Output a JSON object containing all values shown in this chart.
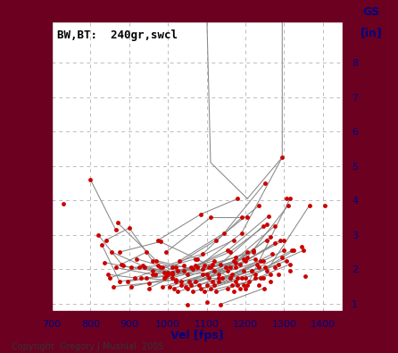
{
  "title": "BW,BT:  240gr,swcl",
  "xlabel": "Vel [fps]",
  "ylabel_line1": "GS",
  "ylabel_line2": "[in]",
  "copyright": "Copyright  Gregory J Mushial  2005",
  "xlim": [
    700,
    1450
  ],
  "ylim": [
    0.8,
    9.2
  ],
  "xticks": [
    700,
    800,
    900,
    1000,
    1100,
    1200,
    1300,
    1400
  ],
  "yticks": [
    1,
    2,
    3,
    4,
    5,
    6,
    7,
    8
  ],
  "bg_color": "#ffffff",
  "border_color": "#6b0020",
  "dot_color": "#cc0000",
  "line_color": "#888888",
  "grid_color": "#bbbbbb",
  "series": [
    [
      [
        730,
        3.9
      ]
    ],
    [
      [
        800,
        4.6
      ],
      [
        865,
        3.15
      ]
    ],
    [
      [
        820,
        3.0
      ],
      [
        880,
        2.15
      ],
      [
        945,
        2.5
      ]
    ],
    [
      [
        830,
        2.7
      ],
      [
        875,
        1.65
      ],
      [
        945,
        1.75
      ],
      [
        1010,
        1.85
      ]
    ],
    [
      [
        835,
        2.2
      ],
      [
        905,
        2.05
      ],
      [
        975,
        2.1
      ]
    ],
    [
      [
        840,
        2.85
      ],
      [
        900,
        3.2
      ],
      [
        960,
        2.25
      ],
      [
        1020,
        2.05
      ]
    ],
    [
      [
        845,
        1.85
      ],
      [
        915,
        1.75
      ],
      [
        985,
        2.05
      ]
    ],
    [
      [
        850,
        1.75
      ],
      [
        925,
        2.05
      ],
      [
        1000,
        1.9
      ],
      [
        1070,
        2.1
      ]
    ],
    [
      [
        855,
        2.5
      ],
      [
        935,
        2.1
      ],
      [
        1010,
        1.9
      ]
    ],
    [
      [
        860,
        1.5
      ],
      [
        950,
        1.6
      ],
      [
        1020,
        1.7
      ]
    ],
    [
      [
        865,
        2.05
      ],
      [
        960,
        1.85
      ],
      [
        1040,
        2.1
      ]
    ],
    [
      [
        870,
        3.35
      ],
      [
        970,
        2.25
      ],
      [
        1065,
        2.0
      ]
    ],
    [
      [
        875,
        2.5
      ],
      [
        980,
        2.8
      ],
      [
        1075,
        2.3
      ],
      [
        1160,
        1.75
      ]
    ],
    [
      [
        885,
        2.1
      ],
      [
        990,
        1.9
      ],
      [
        1090,
        2.0
      ],
      [
        1175,
        2.2
      ]
    ],
    [
      [
        895,
        1.65
      ],
      [
        995,
        1.8
      ],
      [
        1095,
        2.1
      ]
    ],
    [
      [
        905,
        1.5
      ],
      [
        1010,
        1.75
      ],
      [
        1110,
        2.05
      ],
      [
        1195,
        2.3
      ]
    ],
    [
      [
        920,
        2.3
      ],
      [
        1025,
        1.95
      ],
      [
        1120,
        2.25
      ]
    ],
    [
      [
        930,
        1.75
      ],
      [
        1035,
        1.65
      ],
      [
        1130,
        1.75
      ]
    ],
    [
      [
        940,
        2.05
      ],
      [
        1050,
        1.85
      ],
      [
        1155,
        1.95
      ]
    ],
    [
      [
        950,
        1.45
      ],
      [
        1060,
        2.05
      ],
      [
        1160,
        2.5
      ],
      [
        1255,
        3.3
      ]
    ],
    [
      [
        960,
        1.95
      ],
      [
        1070,
        2.3
      ],
      [
        1170,
        2.85
      ]
    ],
    [
      [
        968,
        1.85
      ],
      [
        1075,
        2.05
      ],
      [
        1175,
        2.35
      ]
    ],
    [
      [
        975,
        2.85
      ],
      [
        1085,
        3.6
      ],
      [
        1180,
        4.05
      ]
    ],
    [
      [
        980,
        2.05
      ],
      [
        1090,
        2.45
      ],
      [
        1190,
        3.5
      ]
    ],
    [
      [
        985,
        1.5
      ],
      [
        1100,
        1.85
      ],
      [
        1200,
        2.25
      ],
      [
        1300,
        2.85
      ]
    ],
    [
      [
        990,
        1.75
      ],
      [
        1105,
        2.05
      ],
      [
        1205,
        2.5
      ]
    ],
    [
      [
        995,
        2.5
      ],
      [
        1110,
        3.5
      ],
      [
        1205,
        3.5
      ]
    ],
    [
      [
        1000,
        1.85
      ],
      [
        1115,
        2.15
      ],
      [
        1220,
        2.5
      ]
    ],
    [
      [
        1005,
        1.5
      ],
      [
        1120,
        1.95
      ],
      [
        1225,
        2.3
      ]
    ],
    [
      [
        1010,
        2.05
      ],
      [
        1125,
        2.85
      ],
      [
        1235,
        3.85
      ]
    ],
    [
      [
        1015,
        1.45
      ],
      [
        1130,
        1.85
      ],
      [
        1240,
        2.25
      ]
    ],
    [
      [
        1020,
        1.65
      ],
      [
        1135,
        2.15
      ],
      [
        1245,
        3.25
      ]
    ],
    [
      [
        1025,
        1.35
      ],
      [
        1140,
        1.75
      ],
      [
        1250,
        2.05
      ],
      [
        1350,
        2.55
      ]
    ],
    [
      [
        1030,
        2.25
      ],
      [
        1145,
        3.05
      ],
      [
        1250,
        4.5
      ]
    ],
    [
      [
        1035,
        1.55
      ],
      [
        1150,
        2.05
      ],
      [
        1255,
        2.85
      ]
    ],
    [
      [
        1040,
        1.95
      ],
      [
        1155,
        2.55
      ],
      [
        1260,
        3.55
      ]
    ],
    [
      [
        1045,
        1.5
      ],
      [
        1160,
        2.05
      ],
      [
        1265,
        2.95
      ]
    ],
    [
      [
        1050,
        1.45
      ],
      [
        1165,
        1.85
      ],
      [
        1270,
        2.45
      ]
    ],
    [
      [
        1055,
        1.65
      ],
      [
        1170,
        2.25
      ],
      [
        1275,
        3.25
      ]
    ],
    [
      [
        1060,
        1.55
      ],
      [
        1175,
        2.05
      ],
      [
        1275,
        2.75
      ]
    ],
    [
      [
        1065,
        1.35
      ],
      [
        1180,
        1.75
      ],
      [
        1285,
        2.15
      ]
    ],
    [
      [
        1070,
        1.65
      ],
      [
        1185,
        2.15
      ],
      [
        1290,
        2.85
      ]
    ],
    [
      [
        1075,
        2.05
      ],
      [
        1190,
        3.05
      ],
      [
        1295,
        5.25
      ]
    ],
    [
      [
        1080,
        1.55
      ],
      [
        1195,
        1.95
      ],
      [
        1300,
        2.55
      ]
    ],
    [
      [
        1085,
        1.45
      ],
      [
        1200,
        1.75
      ],
      [
        1305,
        2.25
      ]
    ],
    [
      [
        1090,
        1.85
      ],
      [
        1205,
        2.35
      ],
      [
        1310,
        3.85
      ]
    ],
    [
      [
        1095,
        1.35
      ],
      [
        1210,
        1.65
      ],
      [
        1315,
        2.15
      ]
    ],
    [
      [
        1100,
        1.55
      ],
      [
        1215,
        1.95
      ],
      [
        1320,
        2.55
      ]
    ],
    [
      [
        1105,
        1.75
      ],
      [
        1220,
        2.55
      ]
    ],
    [
      [
        1110,
        1.45
      ],
      [
        1225,
        1.85
      ],
      [
        1325,
        2.55
      ]
    ],
    [
      [
        1115,
        1.65
      ],
      [
        1230,
        2.15
      ]
    ],
    [
      [
        1120,
        1.55
      ],
      [
        1235,
        2.05
      ]
    ],
    [
      [
        1125,
        1.35
      ],
      [
        1240,
        1.75
      ]
    ],
    [
      [
        1130,
        1.65
      ],
      [
        1245,
        2.25
      ]
    ],
    [
      [
        1135,
        0.98
      ],
      [
        1248,
        1.45
      ]
    ],
    [
      [
        1050,
        0.97
      ]
    ],
    [
      [
        1100,
        1.05
      ]
    ],
    [
      [
        1155,
        1.45
      ],
      [
        1265,
        1.85
      ]
    ],
    [
      [
        1160,
        1.75
      ]
    ],
    [
      [
        1165,
        1.55
      ]
    ],
    [
      [
        1170,
        1.35
      ]
    ],
    [
      [
        1175,
        1.65
      ]
    ],
    [
      [
        1180,
        1.55
      ]
    ],
    [
      [
        1185,
        1.45
      ]
    ],
    [
      [
        1190,
        1.75
      ]
    ],
    [
      [
        1195,
        1.55
      ]
    ],
    [
      [
        1200,
        1.45
      ]
    ],
    [
      [
        1205,
        1.55
      ],
      [
        1315,
        4.05
      ]
    ],
    [
      [
        1215,
        1.95
      ]
    ],
    [
      [
        1225,
        1.75
      ]
    ],
    [
      [
        1235,
        1.55
      ]
    ],
    [
      [
        1245,
        1.75
      ]
    ],
    [
      [
        1255,
        1.95
      ],
      [
        1365,
        3.85
      ]
    ],
    [
      [
        1265,
        1.65
      ]
    ],
    [
      [
        1275,
        2.05
      ]
    ],
    [
      [
        1285,
        1.85
      ]
    ],
    [
      [
        1295,
        2.35
      ]
    ],
    [
      [
        1305,
        4.05
      ]
    ],
    [
      [
        1315,
        1.95
      ]
    ],
    [
      [
        1345,
        2.65
      ]
    ],
    [
      [
        1355,
        1.8
      ]
    ],
    [
      [
        1405,
        3.85
      ]
    ]
  ],
  "spike_series": [
    [
      [
        1100,
        9.5
      ],
      [
        1110,
        5.1
      ],
      [
        1205,
        4.05
      ]
    ],
    [
      [
        1295,
        9.5
      ],
      [
        1295,
        5.25
      ],
      [
        1205,
        4.05
      ]
    ]
  ]
}
